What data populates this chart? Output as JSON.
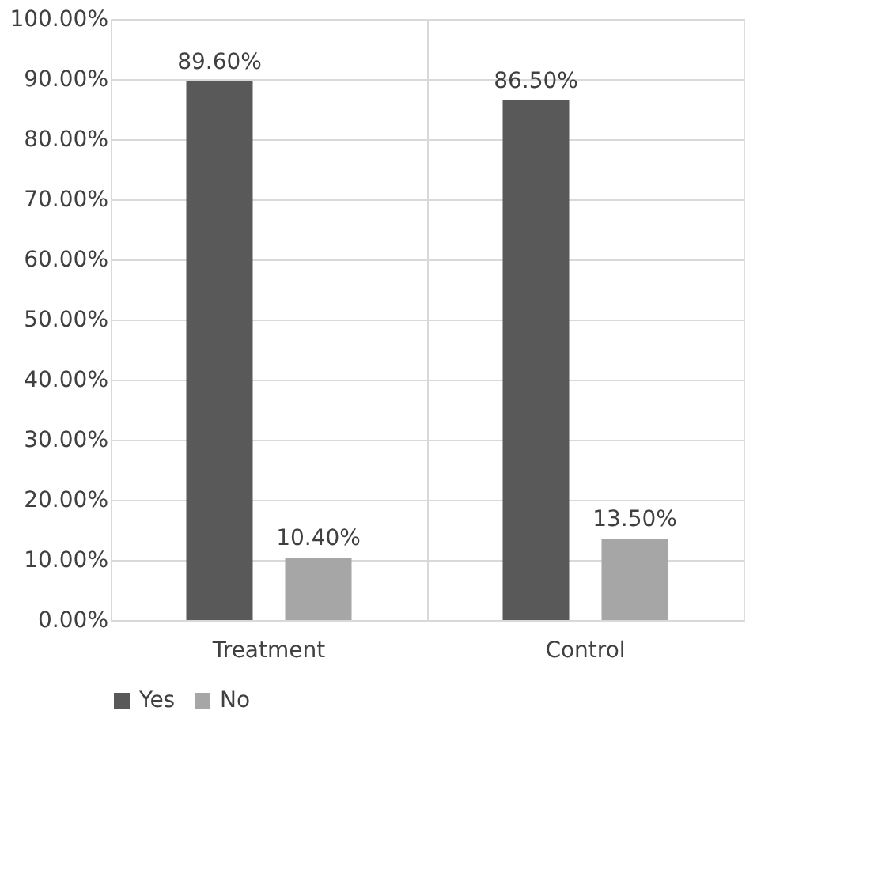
{
  "chart_data": {
    "type": "bar",
    "categories": [
      "Treatment",
      "Control"
    ],
    "series": [
      {
        "name": "Yes",
        "color": "#595959",
        "values": [
          89.6,
          86.5
        ],
        "value_labels": [
          "89.60%",
          "86.50%"
        ]
      },
      {
        "name": "No",
        "color": "#a6a6a6",
        "values": [
          10.4,
          13.5
        ],
        "value_labels": [
          "10.40%",
          "13.50%"
        ]
      }
    ],
    "ylim": [
      0,
      100
    ],
    "yticks": [
      {
        "value": 0,
        "label": "0.00%"
      },
      {
        "value": 10,
        "label": "10.00%"
      },
      {
        "value": 20,
        "label": "20.00%"
      },
      {
        "value": 30,
        "label": "30.00%"
      },
      {
        "value": 40,
        "label": "40.00%"
      },
      {
        "value": 50,
        "label": "50.00%"
      },
      {
        "value": 60,
        "label": "60.00%"
      },
      {
        "value": 70,
        "label": "70.00%"
      },
      {
        "value": 80,
        "label": "80.00%"
      },
      {
        "value": 90,
        "label": "90.00%"
      },
      {
        "value": 100,
        "label": "100.00%"
      }
    ],
    "grid": true,
    "legend": "bottom"
  }
}
